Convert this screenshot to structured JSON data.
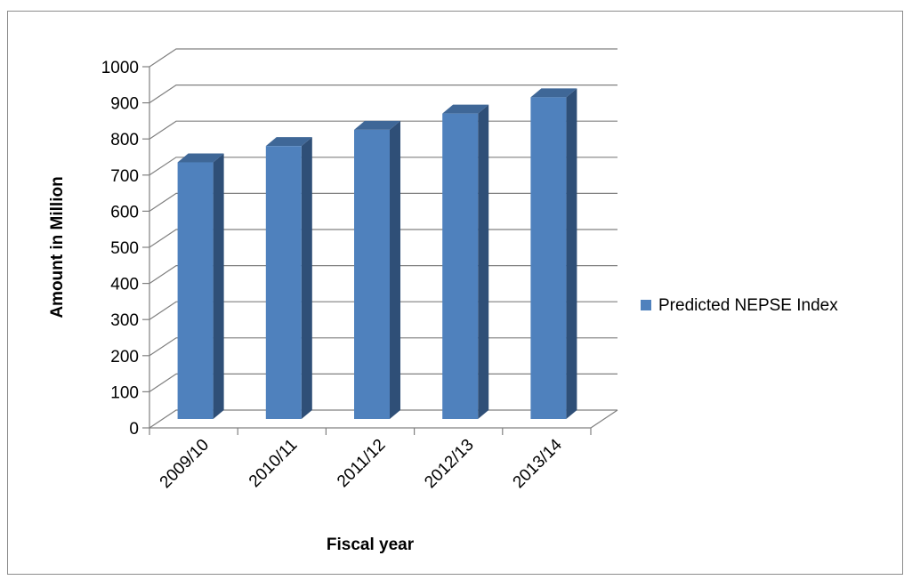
{
  "chart_data": {
    "type": "bar",
    "title": "",
    "xlabel": "Fiscal year",
    "ylabel": "Amount in Million",
    "categories": [
      "2009/10",
      "2010/11",
      "2011/12",
      "2012/13",
      "2013/14"
    ],
    "series": [
      {
        "name": "Predicted NEPSE Index",
        "values": [
          760,
          805,
          850,
          895,
          940
        ]
      }
    ],
    "ylim": [
      0,
      1000
    ],
    "y_ticks": [
      "0",
      "100",
      "200",
      "300",
      "400",
      "500",
      "600",
      "700",
      "800",
      "900",
      "1000"
    ],
    "grid": true,
    "three_d": true,
    "legend_position": "right",
    "colors": {
      "bar_front": "#4f81bd",
      "bar_side": "#2f4f77",
      "bar_top": "#3f6797",
      "gridline": "#808080",
      "border": "#8c8c8c"
    }
  }
}
